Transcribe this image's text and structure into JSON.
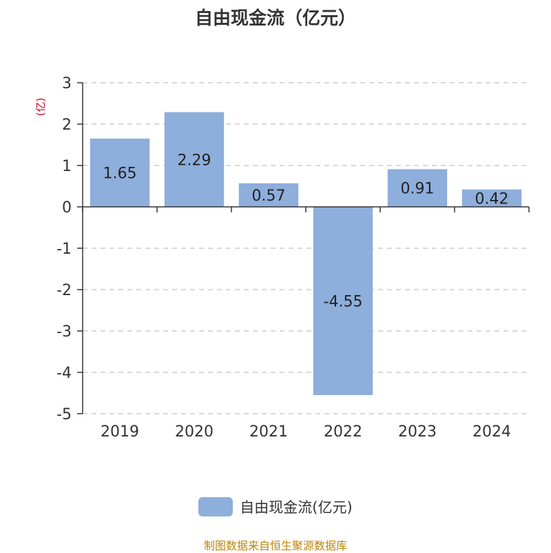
{
  "chart_data": {
    "type": "bar",
    "title": "自由现金流（亿元）",
    "ylabel": "(亿)",
    "categories": [
      "2019",
      "2020",
      "2021",
      "2022",
      "2023",
      "2024"
    ],
    "series": [
      {
        "name": "自由现金流(亿元)",
        "values": [
          1.65,
          2.29,
          0.57,
          -4.55,
          0.91,
          0.42
        ]
      }
    ],
    "ylim": [
      -5,
      3
    ],
    "yticks": [
      3,
      2,
      1,
      0,
      -1,
      -2,
      -3,
      -4,
      -5
    ],
    "grid": true,
    "legend_position": "bottom-center",
    "colors": {
      "bar": "#8eaedb",
      "ylabel": "#d9001b",
      "footer": "#b8860b"
    }
  },
  "footer": "制图数据来自恒生聚源数据库"
}
